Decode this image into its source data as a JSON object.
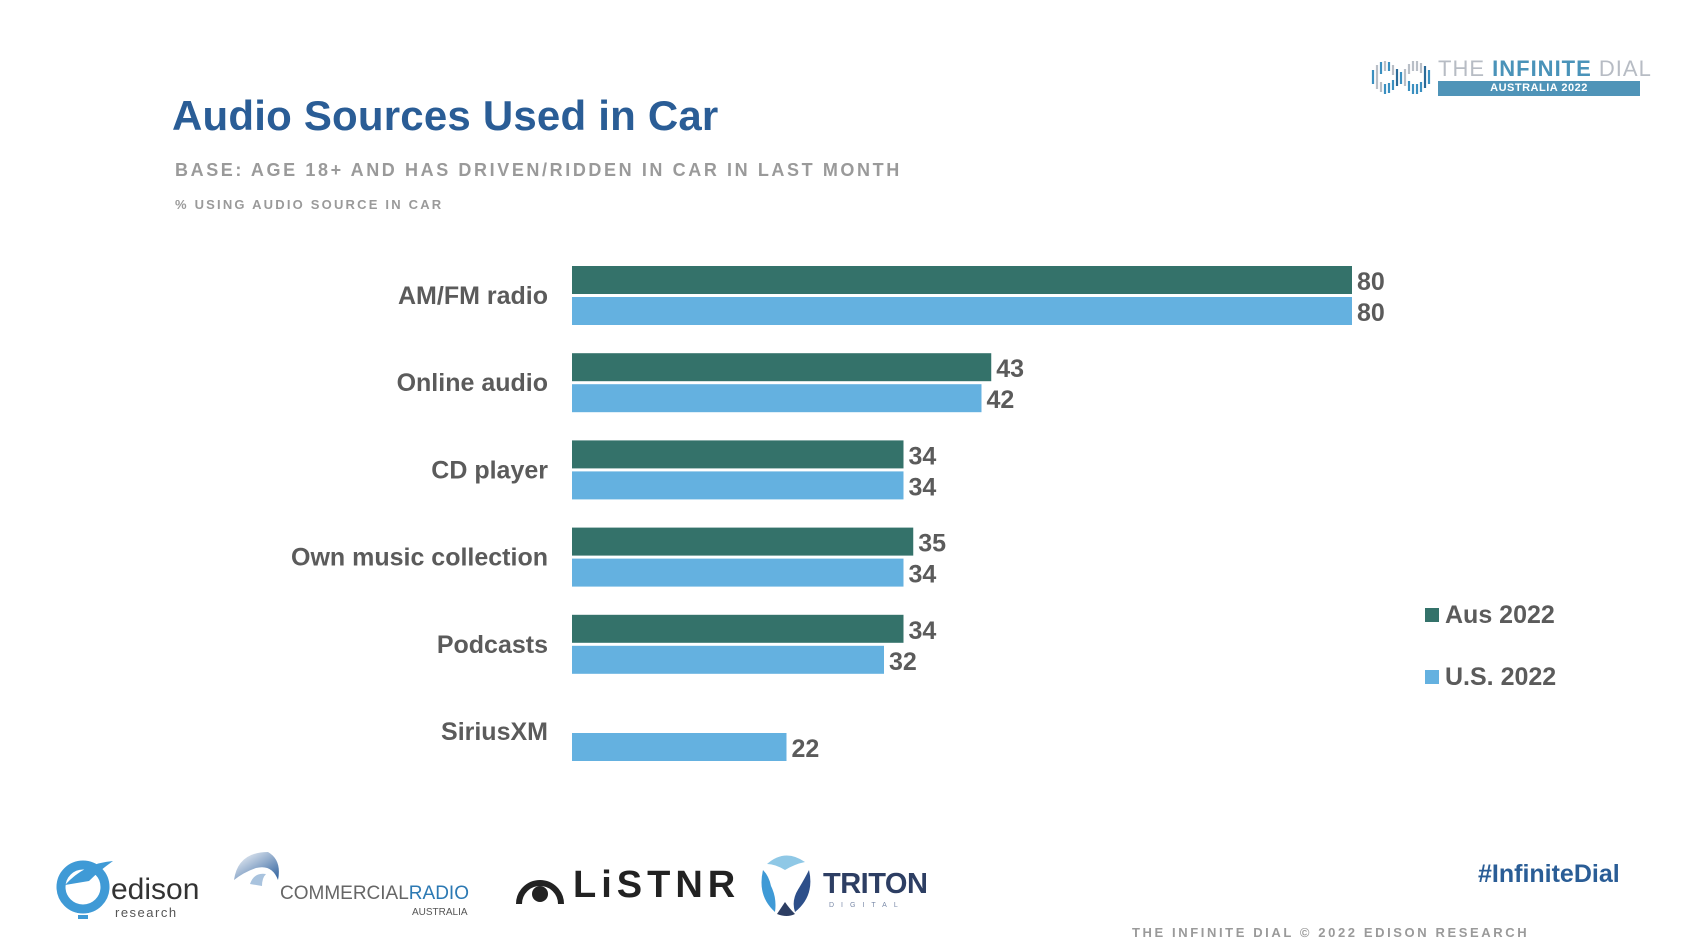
{
  "header": {
    "title": "Audio Sources Used in Car",
    "base": "BASE: AGE 18+ AND HAS DRIVEN/RIDDEN IN CAR IN LAST MONTH",
    "subtitle": "% USING AUDIO SOURCE IN CAR"
  },
  "brand": {
    "the": "THE ",
    "infinite": "INFINITE",
    "dial": " DIAL",
    "edition": "AUSTRALIA 2022",
    "icon": "infinity-waveform-icon"
  },
  "colors": {
    "aus": "#34726a",
    "us": "#64b1e0",
    "title": "#2a5d96",
    "text": "#5b5b5b"
  },
  "chart_data": {
    "type": "bar",
    "orientation": "horizontal",
    "title": "Audio Sources Used in Car",
    "subtitle": "% USING AUDIO SOURCE IN CAR",
    "xlabel": "",
    "ylabel": "",
    "xlim": [
      0,
      80
    ],
    "grid": false,
    "legend_position": "right",
    "categories": [
      "AM/FM radio",
      "Online audio",
      "CD player",
      "Own music collection",
      "Podcasts",
      "SiriusXM"
    ],
    "series": [
      {
        "name": "Aus 2022",
        "color": "#34726a",
        "values": [
          80,
          43,
          34,
          35,
          34,
          null
        ]
      },
      {
        "name": "U.S. 2022",
        "color": "#64b1e0",
        "values": [
          80,
          42,
          34,
          34,
          32,
          22
        ]
      }
    ]
  },
  "legend": {
    "items": [
      {
        "label": "Aus 2022",
        "color": "#34726a"
      },
      {
        "label": "U.S. 2022",
        "color": "#64b1e0"
      }
    ]
  },
  "footer": {
    "hashtag": "#InfiniteDial",
    "copyright": "THE INFINITE DIAL  © 2022 EDISON RESEARCH",
    "logos": {
      "edison": {
        "word": "edison",
        "sub": "research"
      },
      "cra": {
        "main1": "COMMERCIAL",
        "main2": "RADIO",
        "sub": "AUSTRALIA"
      },
      "listnr": {
        "word": "LiSTNR"
      },
      "triton": {
        "word": "TRITON",
        "sub": "DIGITAL"
      }
    }
  }
}
